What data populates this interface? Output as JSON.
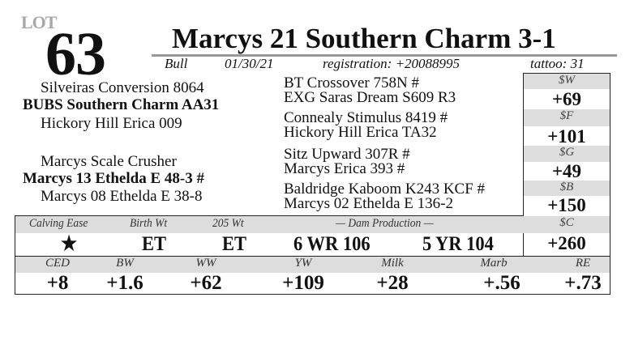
{
  "lot": {
    "logo": "LOT",
    "number": "63"
  },
  "animal": {
    "name": "Marcys 21 Southern Charm 3-1",
    "sex": "Bull",
    "birth_date": "01/30/21",
    "registration": "registration: +20088995",
    "tattoo": "tattoo: 31"
  },
  "pedigree": {
    "sire": "BUBS Southern Charm AA31",
    "sire_sire": "Silveiras Conversion 8064",
    "sire_dam": "Hickory Hill Erica 009",
    "dam": "Marcys 13 Ethelda E 48-3 #",
    "dam_sire": "Marcys Scale Crusher",
    "dam_dam": "Marcys 08 Ethelda E 38-8",
    "ggp": [
      "BT Crossover 758N #",
      "EXG Saras Dream S609 R3",
      "Connealy Stimulus 8419 #",
      "Hickory Hill Erica TA32",
      "Sitz Upward 307R #",
      "Marcys Erica 393 #",
      "Baldridge Kaboom K243 KCF #",
      "Marcys 02 Ethelda E 136-2"
    ]
  },
  "indexes": [
    {
      "label": "$W",
      "value": "+69"
    },
    {
      "label": "$F",
      "value": "+101"
    },
    {
      "label": "$G",
      "value": "+49"
    },
    {
      "label": "$B",
      "value": "+150"
    },
    {
      "label": "$C",
      "value": "+260"
    }
  ],
  "performance": {
    "headers": [
      "Calving Ease",
      "Birth Wt",
      "205 Wt",
      "— Dam Production —"
    ],
    "calving_ease": "★",
    "birth_wt": "ET",
    "wt205": "ET",
    "dam_prod_1": "6 WR 106",
    "dam_prod_2": "5 YR 104"
  },
  "epds": [
    {
      "label": "CED",
      "value": "+8"
    },
    {
      "label": "BW",
      "value": "+1.6"
    },
    {
      "label": "WW",
      "value": "+62"
    },
    {
      "label": "YW",
      "value": "+109"
    },
    {
      "label": "Milk",
      "value": "+28"
    },
    {
      "label": "Marb",
      "value": "+.56"
    },
    {
      "label": "RE",
      "value": "+.73"
    }
  ],
  "colors": {
    "header_bg": "#dddddd",
    "rule": "#999999",
    "logo": "#a8a8a8"
  }
}
